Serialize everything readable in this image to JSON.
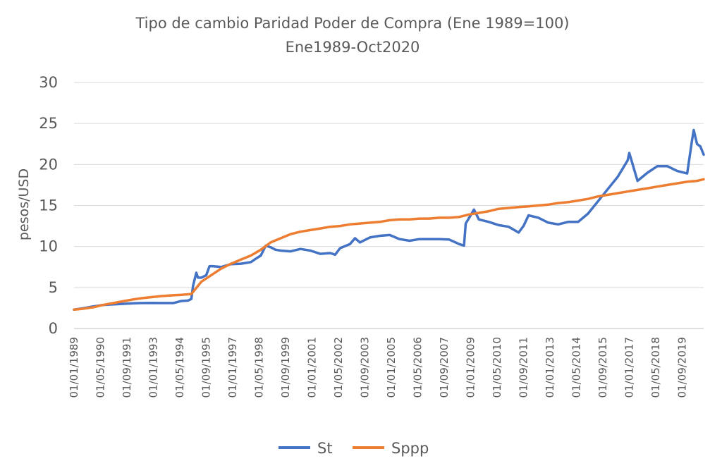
{
  "chart_data": {
    "type": "line",
    "title": "Tipo de cambio Paridad Poder de Compra (Ene 1989=100)",
    "subtitle": "Ene1989-Oct2020",
    "ylabel": "pesos/USD",
    "xlabel": "",
    "ylim": [
      0,
      30
    ],
    "yticks": [
      0,
      5,
      10,
      15,
      20,
      25,
      30
    ],
    "grid": true,
    "legend": "bottom",
    "x_range": [
      "1989-01",
      "2020-10"
    ],
    "x_tick_labels": [
      "01/01/1989",
      "01/05/1990",
      "01/09/1991",
      "01/01/1993",
      "01/05/1994",
      "01/09/1995",
      "01/01/1997",
      "01/05/1998",
      "01/09/1999",
      "01/01/2001",
      "01/05/2002",
      "01/09/2003",
      "01/01/2005",
      "01/05/2006",
      "01/09/2007",
      "01/01/2009",
      "01/05/2010",
      "01/09/2011",
      "01/01/2013",
      "01/05/2014",
      "01/09/2015",
      "01/01/2017",
      "01/05/2018",
      "01/09/2019"
    ],
    "series": [
      {
        "name": "St",
        "color": "#4472C4",
        "points": [
          [
            "1989-01",
            2.3
          ],
          [
            "1989-06",
            2.45
          ],
          [
            "1990-01",
            2.7
          ],
          [
            "1990-06",
            2.85
          ],
          [
            "1991-01",
            2.95
          ],
          [
            "1991-06",
            3.0
          ],
          [
            "1992-01",
            3.08
          ],
          [
            "1992-06",
            3.1
          ],
          [
            "1993-01",
            3.12
          ],
          [
            "1993-06",
            3.1
          ],
          [
            "1994-01",
            3.1
          ],
          [
            "1994-03",
            3.2
          ],
          [
            "1994-06",
            3.35
          ],
          [
            "1994-10",
            3.4
          ],
          [
            "1994-12",
            3.6
          ],
          [
            "1995-01",
            5.2
          ],
          [
            "1995-02",
            6.0
          ],
          [
            "1995-03",
            6.8
          ],
          [
            "1995-04",
            6.2
          ],
          [
            "1995-06",
            6.2
          ],
          [
            "1995-09",
            6.5
          ],
          [
            "1995-11",
            7.6
          ],
          [
            "1996-01",
            7.6
          ],
          [
            "1996-06",
            7.5
          ],
          [
            "1996-12",
            7.85
          ],
          [
            "1997-06",
            7.9
          ],
          [
            "1997-12",
            8.1
          ],
          [
            "1998-03",
            8.5
          ],
          [
            "1998-06",
            8.9
          ],
          [
            "1998-09",
            10.1
          ],
          [
            "1998-12",
            9.9
          ],
          [
            "1999-03",
            9.6
          ],
          [
            "1999-06",
            9.5
          ],
          [
            "1999-12",
            9.4
          ],
          [
            "2000-06",
            9.7
          ],
          [
            "2000-12",
            9.5
          ],
          [
            "2001-06",
            9.1
          ],
          [
            "2001-12",
            9.2
          ],
          [
            "2002-03",
            9.0
          ],
          [
            "2002-06",
            9.8
          ],
          [
            "2002-12",
            10.3
          ],
          [
            "2003-03",
            11.0
          ],
          [
            "2003-06",
            10.5
          ],
          [
            "2003-12",
            11.1
          ],
          [
            "2004-06",
            11.3
          ],
          [
            "2004-12",
            11.4
          ],
          [
            "2005-06",
            10.9
          ],
          [
            "2005-12",
            10.7
          ],
          [
            "2006-06",
            10.9
          ],
          [
            "2006-12",
            10.9
          ],
          [
            "2007-06",
            10.9
          ],
          [
            "2007-12",
            10.85
          ],
          [
            "2008-06",
            10.3
          ],
          [
            "2008-09",
            10.1
          ],
          [
            "2008-10",
            12.8
          ],
          [
            "2009-01",
            13.8
          ],
          [
            "2009-03",
            14.5
          ],
          [
            "2009-06",
            13.3
          ],
          [
            "2009-12",
            13.0
          ],
          [
            "2010-06",
            12.6
          ],
          [
            "2010-12",
            12.4
          ],
          [
            "2011-06",
            11.7
          ],
          [
            "2011-09",
            12.5
          ],
          [
            "2011-12",
            13.8
          ],
          [
            "2012-06",
            13.5
          ],
          [
            "2012-12",
            12.9
          ],
          [
            "2013-06",
            12.7
          ],
          [
            "2013-12",
            13.0
          ],
          [
            "2014-06",
            13.0
          ],
          [
            "2014-12",
            14.0
          ],
          [
            "2015-06",
            15.5
          ],
          [
            "2015-12",
            17.0
          ],
          [
            "2016-06",
            18.5
          ],
          [
            "2016-12",
            20.5
          ],
          [
            "2017-01",
            21.4
          ],
          [
            "2017-06",
            18.0
          ],
          [
            "2017-12",
            19.0
          ],
          [
            "2018-06",
            19.8
          ],
          [
            "2018-12",
            19.8
          ],
          [
            "2019-06",
            19.2
          ],
          [
            "2019-12",
            18.9
          ],
          [
            "2020-03",
            23.0
          ],
          [
            "2020-04",
            24.2
          ],
          [
            "2020-06",
            22.5
          ],
          [
            "2020-08",
            22.2
          ],
          [
            "2020-10",
            21.2
          ]
        ]
      },
      {
        "name": "Sppp",
        "color": "#ED7D31",
        "points": [
          [
            "1989-01",
            2.3
          ],
          [
            "1989-06",
            2.4
          ],
          [
            "1990-01",
            2.6
          ],
          [
            "1990-06",
            2.85
          ],
          [
            "1991-01",
            3.1
          ],
          [
            "1991-06",
            3.3
          ],
          [
            "1992-01",
            3.55
          ],
          [
            "1992-06",
            3.7
          ],
          [
            "1993-01",
            3.85
          ],
          [
            "1993-06",
            3.95
          ],
          [
            "1994-01",
            4.05
          ],
          [
            "1994-06",
            4.1
          ],
          [
            "1994-12",
            4.2
          ],
          [
            "1995-06",
            5.7
          ],
          [
            "1995-12",
            6.5
          ],
          [
            "1996-06",
            7.3
          ],
          [
            "1996-12",
            7.9
          ],
          [
            "1997-06",
            8.4
          ],
          [
            "1997-12",
            8.9
          ],
          [
            "1998-06",
            9.6
          ],
          [
            "1998-12",
            10.5
          ],
          [
            "1999-06",
            11.0
          ],
          [
            "1999-12",
            11.5
          ],
          [
            "2000-06",
            11.8
          ],
          [
            "2000-12",
            12.0
          ],
          [
            "2001-06",
            12.2
          ],
          [
            "2001-12",
            12.4
          ],
          [
            "2002-06",
            12.5
          ],
          [
            "2002-12",
            12.7
          ],
          [
            "2003-06",
            12.8
          ],
          [
            "2003-12",
            12.9
          ],
          [
            "2004-06",
            13.0
          ],
          [
            "2004-12",
            13.2
          ],
          [
            "2005-06",
            13.3
          ],
          [
            "2005-12",
            13.3
          ],
          [
            "2006-06",
            13.4
          ],
          [
            "2006-12",
            13.4
          ],
          [
            "2007-06",
            13.5
          ],
          [
            "2007-12",
            13.5
          ],
          [
            "2008-06",
            13.6
          ],
          [
            "2008-12",
            13.9
          ],
          [
            "2009-06",
            14.1
          ],
          [
            "2009-12",
            14.3
          ],
          [
            "2010-06",
            14.6
          ],
          [
            "2010-12",
            14.7
          ],
          [
            "2011-06",
            14.8
          ],
          [
            "2011-12",
            14.9
          ],
          [
            "2012-06",
            15.0
          ],
          [
            "2012-12",
            15.1
          ],
          [
            "2013-06",
            15.3
          ],
          [
            "2013-12",
            15.4
          ],
          [
            "2014-06",
            15.6
          ],
          [
            "2014-12",
            15.8
          ],
          [
            "2015-06",
            16.1
          ],
          [
            "2015-12",
            16.3
          ],
          [
            "2016-06",
            16.5
          ],
          [
            "2016-12",
            16.7
          ],
          [
            "2017-06",
            16.9
          ],
          [
            "2017-12",
            17.1
          ],
          [
            "2018-06",
            17.3
          ],
          [
            "2018-12",
            17.5
          ],
          [
            "2019-06",
            17.7
          ],
          [
            "2019-12",
            17.9
          ],
          [
            "2020-06",
            18.0
          ],
          [
            "2020-10",
            18.2
          ]
        ]
      }
    ]
  }
}
